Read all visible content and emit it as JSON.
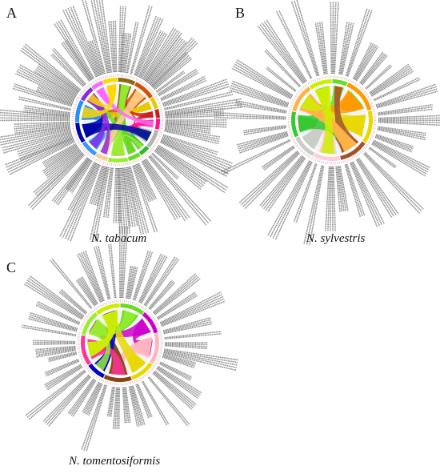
{
  "panels": [
    {
      "letter": "A",
      "caption": "N. tabacum",
      "palette": [
        "#8b6914",
        "#d94f00",
        "#e8c800",
        "#c81e1e",
        "#ff1493",
        "#b5b5b5",
        "#2db82d",
        "#66dd22",
        "#99ee33",
        "#ffcc99",
        "#3399ff",
        "#0000aa",
        "#1e90ff",
        "#8a2be2",
        "#ff66ff",
        "#ffd700"
      ]
    },
    {
      "letter": "B",
      "caption": "N. sylvestris",
      "palette": [
        "#66dd22",
        "#ff9900",
        "#e8d800",
        "#a0522d",
        "#ffccdd",
        "#cccccc",
        "#33cc33",
        "#ffb347",
        "#ccee00"
      ]
    },
    {
      "letter": "C",
      "caption": "N. tomentosiformis",
      "palette": [
        "#66dd22",
        "#cc00cc",
        "#ffb6c1",
        "#e8d800",
        "#8b4513",
        "#0000cc",
        "#ff3399",
        "#99ee33",
        "#ccee00"
      ]
    }
  ]
}
